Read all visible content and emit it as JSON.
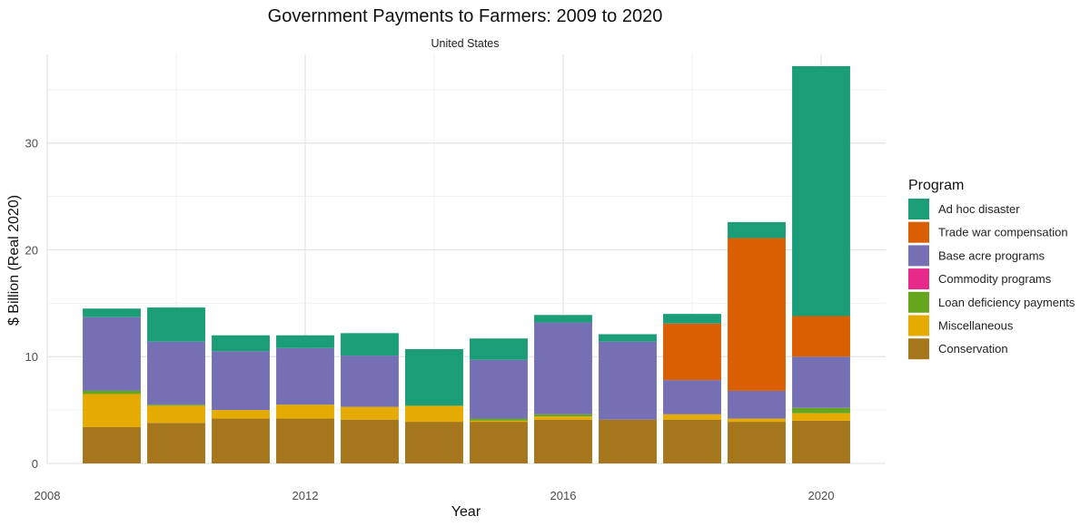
{
  "chart_data": {
    "type": "bar",
    "stacked": true,
    "title": "Government Payments to Farmers: 2009 to 2020",
    "subtitle": "United States",
    "xlabel": "Year",
    "ylabel": "$ Billion (Real 2020)",
    "xlim": [
      2008,
      2021
    ],
    "ylim": [
      0,
      38.3
    ],
    "x_ticks": [
      "2008",
      "2012",
      "2016",
      "2020"
    ],
    "y_ticks": [
      "0",
      "10",
      "20",
      "30"
    ],
    "grid": true,
    "legend_title": "Program",
    "legend_position": "right",
    "x": [
      2009,
      2010,
      2011,
      2012,
      2013,
      2014,
      2015,
      2016,
      2017,
      2018,
      2019,
      2020
    ],
    "series": [
      {
        "name": "Conservation",
        "color": "#a6761d",
        "values": [
          3.4,
          3.8,
          4.2,
          4.2,
          4.1,
          3.9,
          3.9,
          4.1,
          4.1,
          4.1,
          3.9,
          4.0
        ]
      },
      {
        "name": "Miscellaneous",
        "color": "#e6ab02",
        "values": [
          3.1,
          1.6,
          0.8,
          1.3,
          1.2,
          1.5,
          0.1,
          0.3,
          0.0,
          0.5,
          0.3,
          0.7
        ]
      },
      {
        "name": "Loan deficiency payments",
        "color": "#66a61e",
        "values": [
          0.3,
          0.1,
          0.0,
          0.0,
          0.0,
          0.0,
          0.2,
          0.2,
          0.0,
          0.0,
          0.0,
          0.5
        ]
      },
      {
        "name": "Commodity programs",
        "color": "#e7298a",
        "values": [
          0.0,
          0.0,
          0.0,
          0.0,
          0.0,
          0.0,
          0.0,
          0.0,
          0.0,
          0.0,
          0.0,
          0.0
        ]
      },
      {
        "name": "Base acre programs",
        "color": "#7570b3",
        "values": [
          6.9,
          5.9,
          5.5,
          5.3,
          4.8,
          0.0,
          5.5,
          8.6,
          7.3,
          3.2,
          2.6,
          4.8
        ]
      },
      {
        "name": "Trade war compensation",
        "color": "#d95f02",
        "values": [
          0.0,
          0.0,
          0.0,
          0.0,
          0.0,
          0.0,
          0.0,
          0.0,
          0.0,
          5.3,
          14.3,
          3.8
        ]
      },
      {
        "name": "Ad hoc disaster",
        "color": "#1b9e77",
        "values": [
          0.8,
          3.2,
          1.5,
          1.2,
          2.1,
          5.3,
          2.0,
          0.7,
          0.7,
          0.9,
          1.5,
          23.4
        ]
      }
    ],
    "legend_order": [
      "Ad hoc disaster",
      "Trade war compensation",
      "Base acre programs",
      "Commodity programs",
      "Loan deficiency payments",
      "Miscellaneous",
      "Conservation"
    ]
  }
}
